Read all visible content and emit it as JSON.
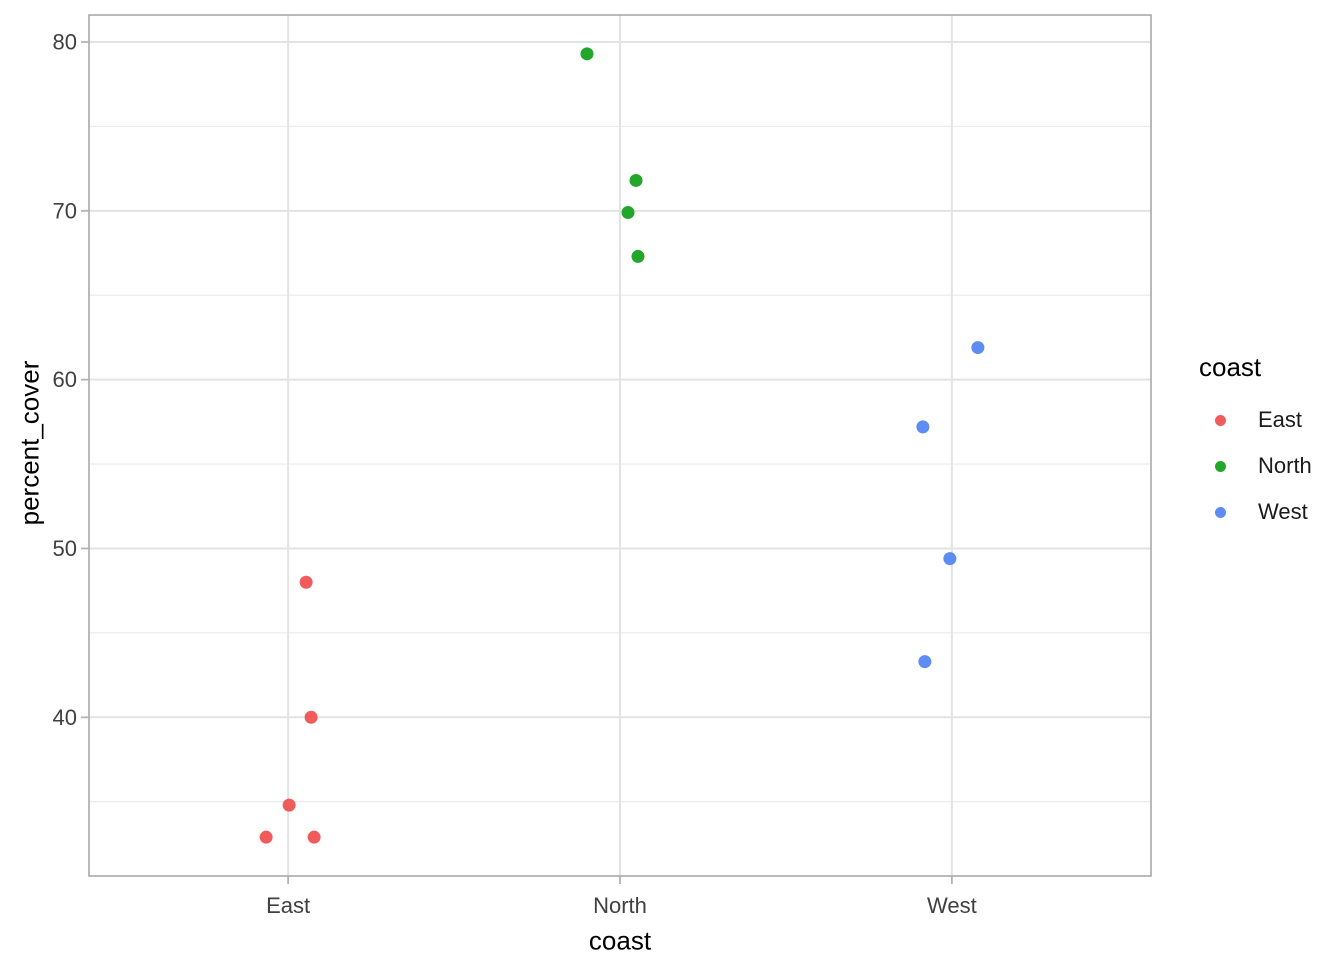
{
  "chart_data": {
    "type": "scatter",
    "title": "",
    "xlabel": "coast",
    "ylabel": "percent_cover",
    "x_categories": [
      "East",
      "North",
      "West"
    ],
    "y_ticks": [
      40,
      50,
      60,
      70,
      80
    ],
    "y_minor_ticks": [
      35,
      45,
      55,
      65,
      75
    ],
    "ylim": [
      30.6,
      81.6
    ],
    "grid": true,
    "legend": {
      "title": "coast",
      "position": "right",
      "items": [
        {
          "label": "East",
          "color": "#F05C5C"
        },
        {
          "label": "North",
          "color": "#23A72B"
        },
        {
          "label": "West",
          "color": "#5D8DF2"
        }
      ]
    },
    "series": [
      {
        "name": "East",
        "color": "#F05C5C",
        "points": [
          {
            "y": 48.0,
            "dx": 18
          },
          {
            "y": 40.0,
            "dx": 23
          },
          {
            "y": 34.8,
            "dx": 1
          },
          {
            "y": 32.9,
            "dx": -22
          },
          {
            "y": 32.9,
            "dx": 26
          }
        ]
      },
      {
        "name": "North",
        "color": "#23A72B",
        "points": [
          {
            "y": 79.3,
            "dx": -33
          },
          {
            "y": 71.8,
            "dx": 16
          },
          {
            "y": 69.9,
            "dx": 8
          },
          {
            "y": 67.3,
            "dx": 18
          }
        ]
      },
      {
        "name": "West",
        "color": "#5D8DF2",
        "points": [
          {
            "y": 61.9,
            "dx": 26
          },
          {
            "y": 57.2,
            "dx": -29
          },
          {
            "y": 49.4,
            "dx": -2
          },
          {
            "y": 43.3,
            "dx": -27
          }
        ]
      }
    ],
    "theme": {
      "panel_background": "#ffffff",
      "panel_border": "#a9a9a9",
      "grid_major": "#e3e3e3",
      "grid_minor": "#ebebeb",
      "tick_mark": "#b3b3b3",
      "tick_label_color": "#404040",
      "title_color": "#000000"
    }
  }
}
